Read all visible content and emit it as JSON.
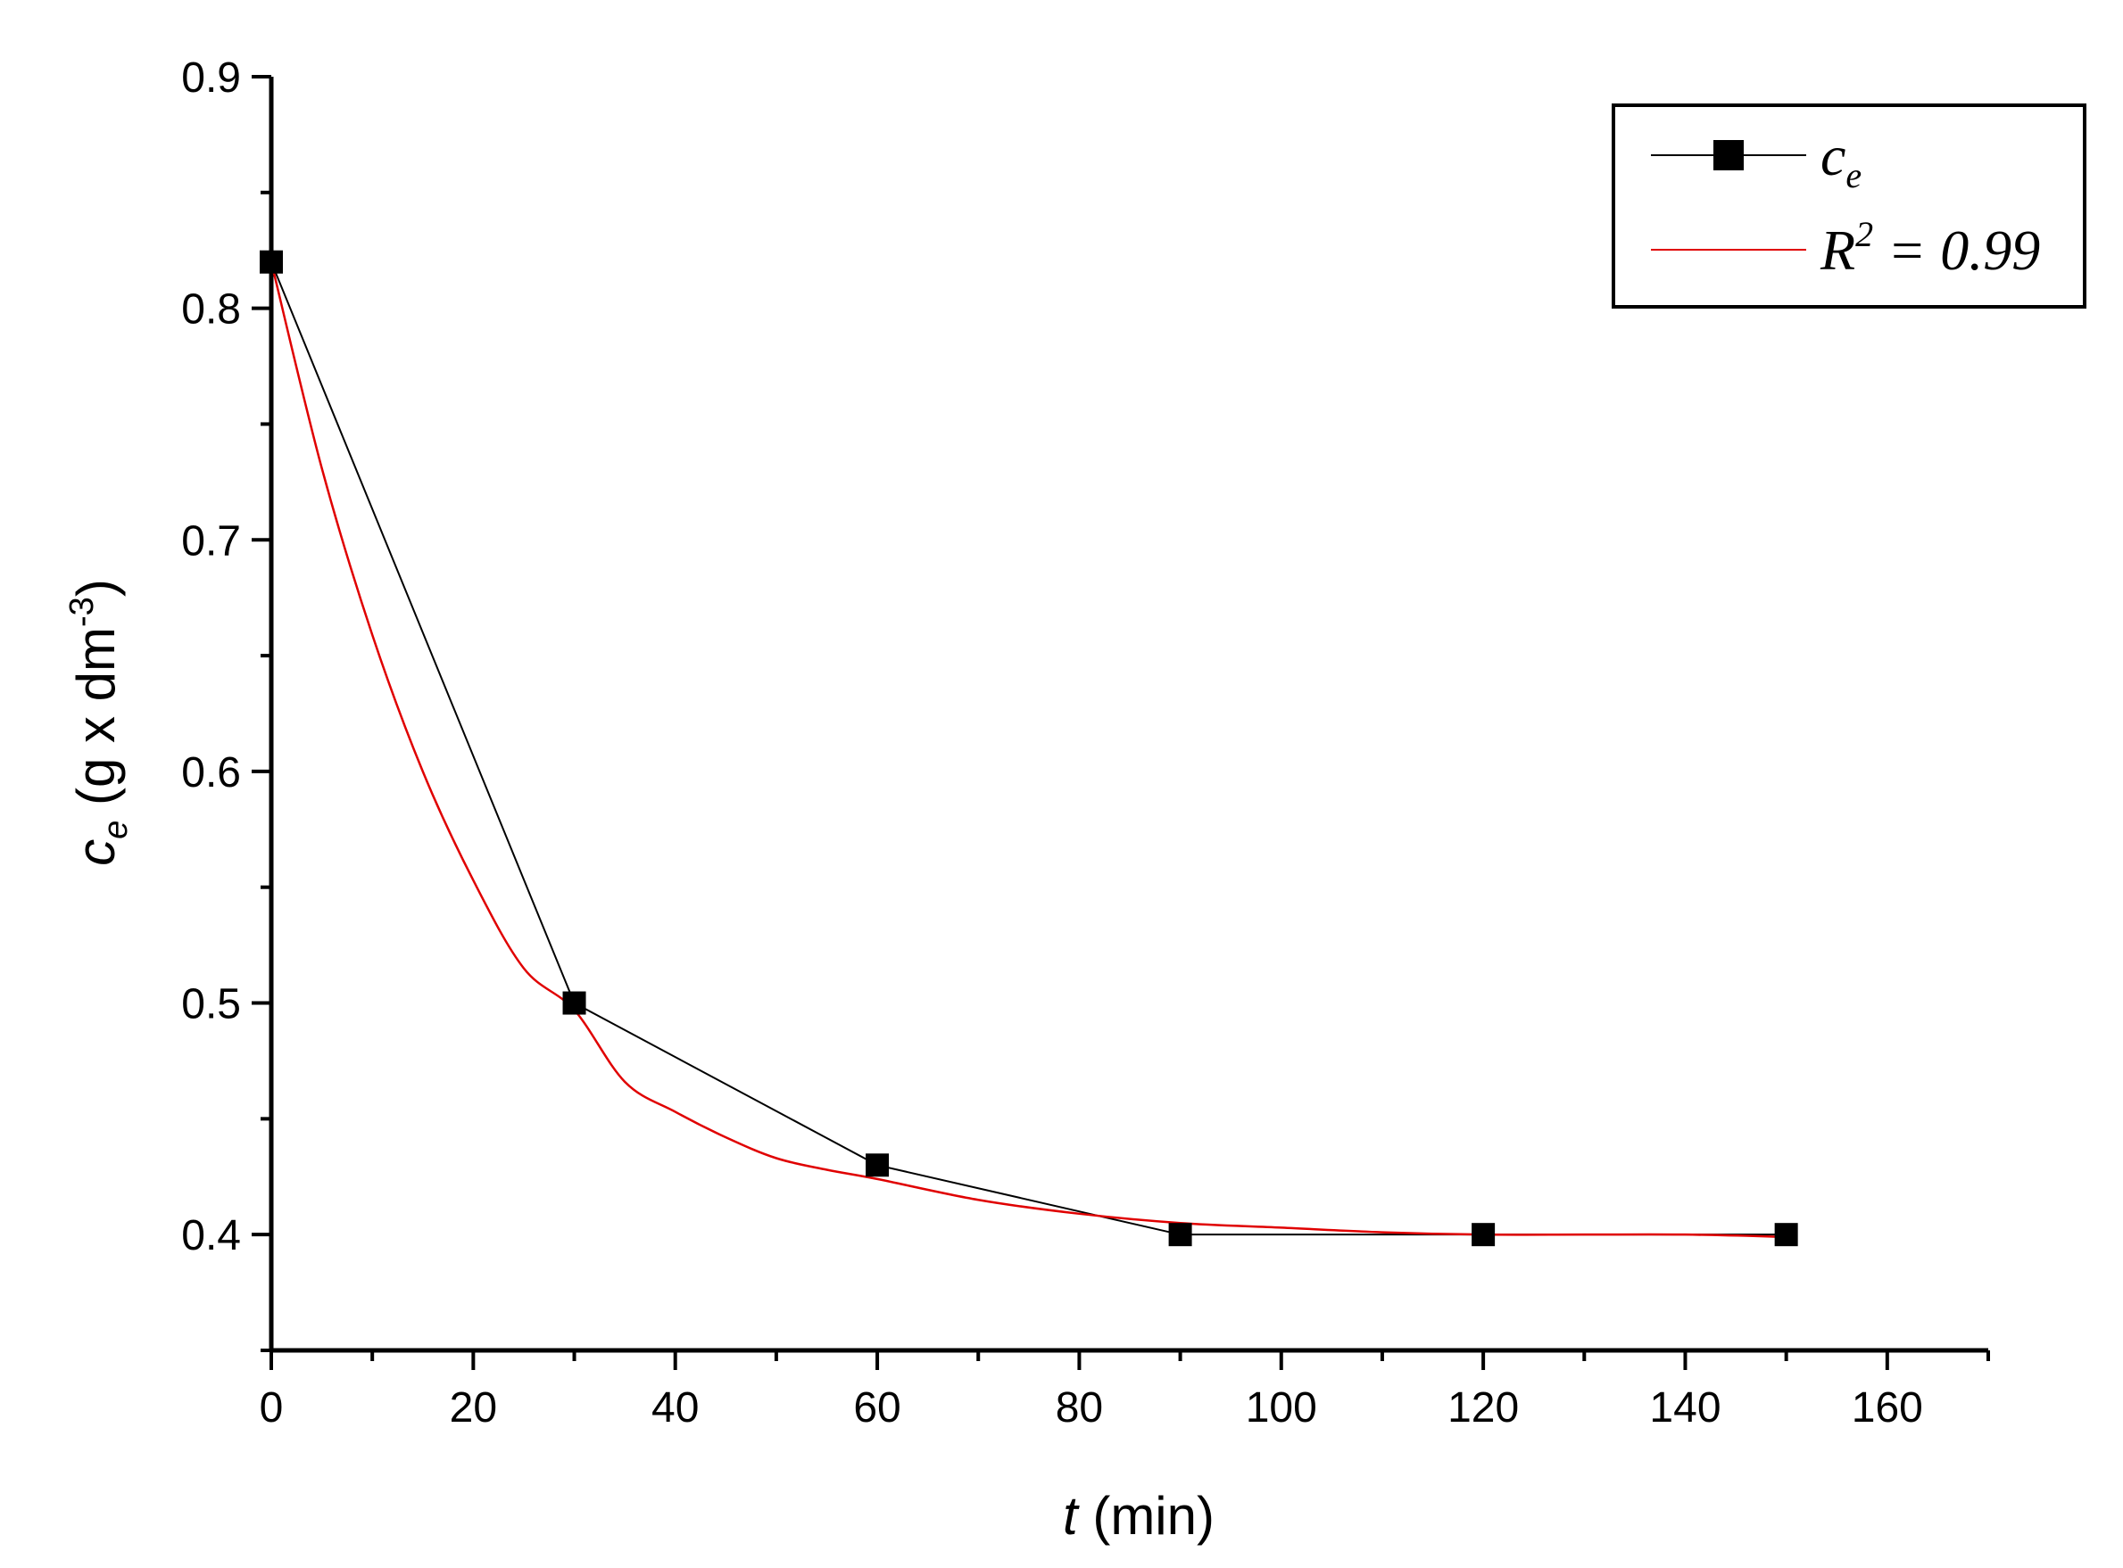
{
  "chart_data": {
    "type": "line",
    "xlabel": {
      "var": "t",
      "unit": " (min)"
    },
    "ylabel": {
      "var": "c",
      "sub": "e",
      "unit": " (g x dm",
      "sup": "-3",
      "close": ")"
    },
    "xlim": [
      0,
      170
    ],
    "ylim": [
      0.35,
      0.9
    ],
    "xticks": [
      0,
      20,
      40,
      60,
      80,
      100,
      120,
      140,
      160
    ],
    "xtick_labels": [
      "0",
      "20",
      "40",
      "60",
      "80",
      "100",
      "120",
      "140",
      "160"
    ],
    "yticks": [
      0.4,
      0.5,
      0.6,
      0.7,
      0.8,
      0.9
    ],
    "ytick_labels": [
      "0.4",
      "0.5",
      "0.6",
      "0.7",
      "0.8",
      "0.9"
    ],
    "grid": false,
    "legend_position": "top-right",
    "series": [
      {
        "name": "c_e",
        "legend_label": {
          "main": "c",
          "sub": "e"
        },
        "color": "#000000",
        "marker": "square",
        "x": [
          0,
          30,
          60,
          90,
          120,
          150
        ],
        "y": [
          0.82,
          0.5,
          0.43,
          0.4,
          0.4,
          0.4
        ]
      },
      {
        "name": "fit",
        "legend_label": {
          "main": "R",
          "sup": "2",
          "rest": " = 0.99"
        },
        "color": "#e00000",
        "marker": "none",
        "smooth": true,
        "x": [
          0,
          5,
          10,
          15,
          20,
          25,
          30,
          35,
          40,
          45,
          50,
          55,
          60,
          70,
          80,
          90,
          100,
          110,
          120,
          130,
          140,
          150
        ],
        "y": [
          0.82,
          0.731,
          0.659,
          0.6,
          0.553,
          0.515,
          0.497,
          0.466,
          0.453,
          0.442,
          0.433,
          0.428,
          0.424,
          0.415,
          0.409,
          0.405,
          0.403,
          0.401,
          0.4,
          0.4,
          0.4,
          0.399
        ]
      }
    ]
  }
}
